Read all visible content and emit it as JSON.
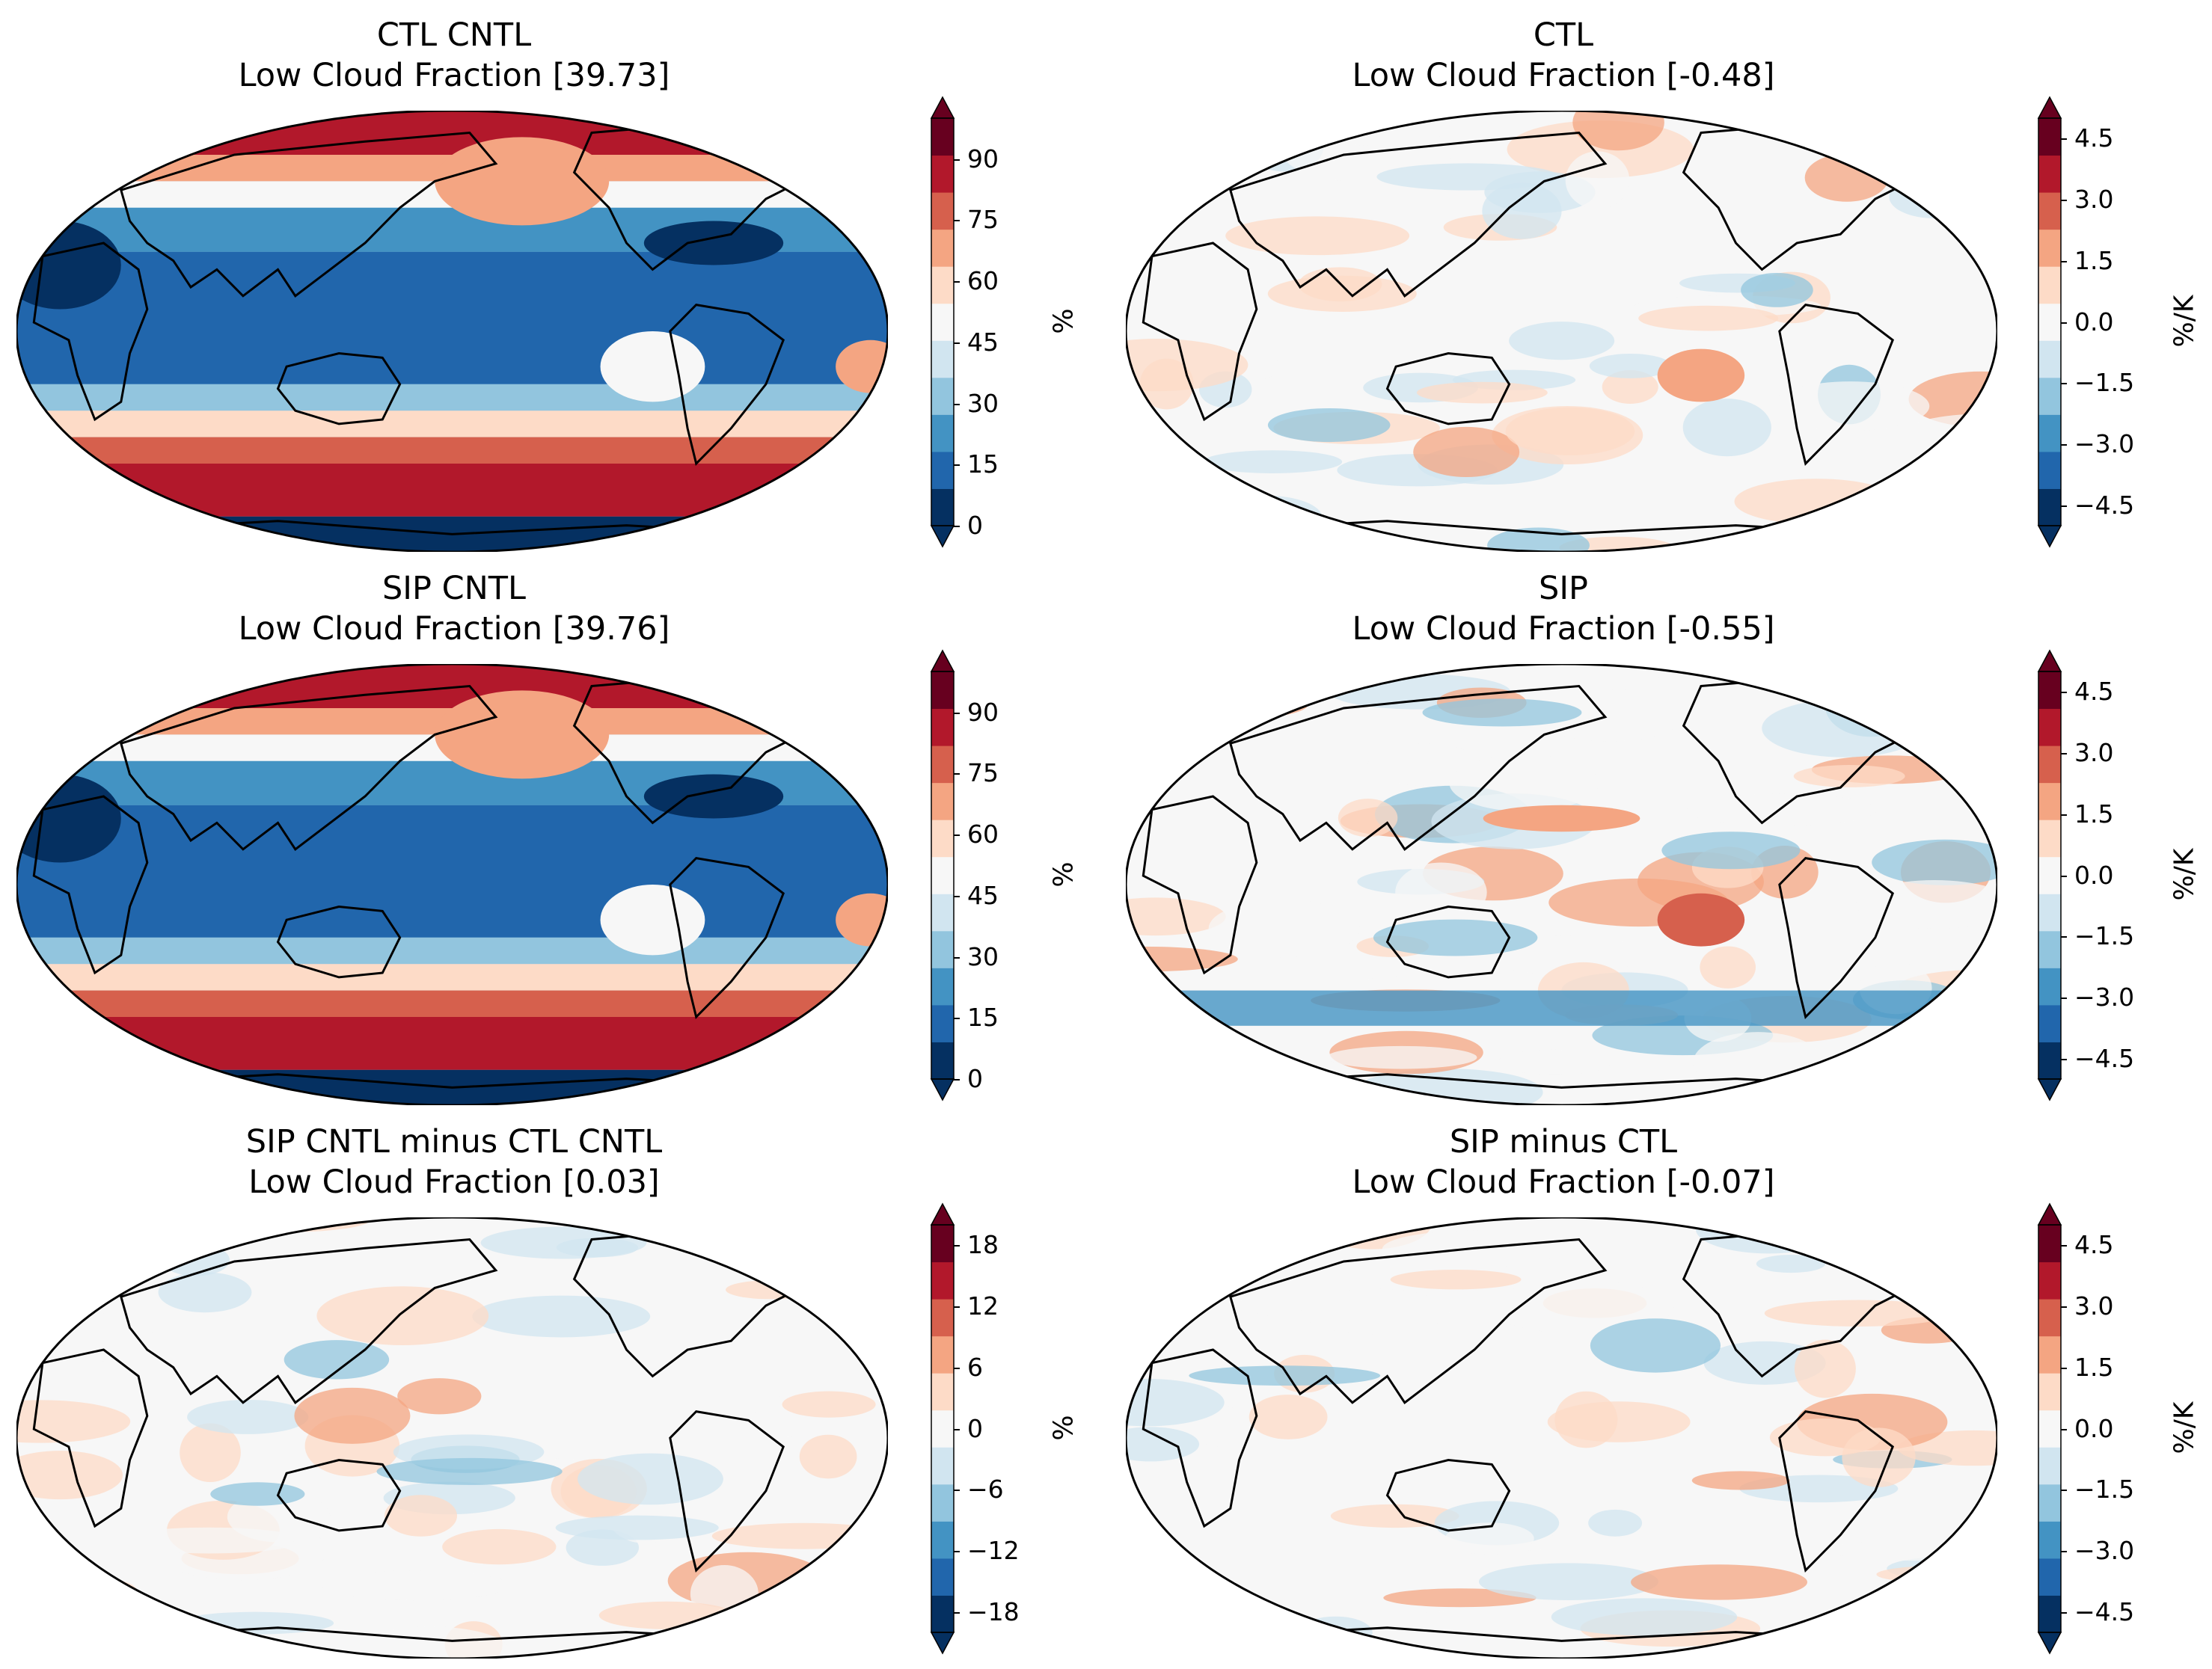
{
  "panels": [
    {
      "name": "ctl-cntl",
      "title1": "CTL CNTL",
      "title2": "Low Cloud Fraction [39.73]",
      "kind": "abs",
      "cbar": {
        "label": "%",
        "ticks": [
          "90",
          "75",
          "60",
          "45",
          "30",
          "15",
          "0"
        ],
        "range": [
          0,
          100
        ]
      }
    },
    {
      "name": "ctl",
      "title1": "CTL",
      "title2": "Low Cloud Fraction [-0.48]",
      "kind": "sens1",
      "cbar": {
        "label": "%/K",
        "ticks": [
          "4.5",
          "3.0",
          "1.5",
          "0.0",
          "−1.5",
          "−3.0",
          "−4.5"
        ],
        "range": [
          -5,
          5
        ]
      }
    },
    {
      "name": "sip-cntl",
      "title1": "SIP CNTL",
      "title2": "Low Cloud Fraction [39.76]",
      "kind": "abs",
      "cbar": {
        "label": "%",
        "ticks": [
          "90",
          "75",
          "60",
          "45",
          "30",
          "15",
          "0"
        ],
        "range": [
          0,
          100
        ]
      }
    },
    {
      "name": "sip",
      "title1": "SIP",
      "title2": "Low Cloud Fraction [-0.55]",
      "kind": "sens2",
      "cbar": {
        "label": "%/K",
        "ticks": [
          "4.5",
          "3.0",
          "1.5",
          "0.0",
          "−1.5",
          "−3.0",
          "−4.5"
        ],
        "range": [
          -5,
          5
        ]
      }
    },
    {
      "name": "sip-cntl-minus-ctl-cntl",
      "title1": "SIP CNTL minus CTL CNTL",
      "title2": "Low Cloud Fraction [0.03]",
      "kind": "diff1",
      "cbar": {
        "label": "%",
        "ticks": [
          "18",
          "12",
          "6",
          "0",
          "−6",
          "−12",
          "−18"
        ],
        "range": [
          -20,
          20
        ]
      }
    },
    {
      "name": "sip-minus-ctl",
      "title1": "SIP minus CTL",
      "title2": "Low Cloud Fraction [-0.07]",
      "kind": "diff2",
      "cbar": {
        "label": "%/K",
        "ticks": [
          "4.5",
          "3.0",
          "1.5",
          "0.0",
          "−1.5",
          "−3.0",
          "−4.5"
        ],
        "range": [
          -5,
          5
        ]
      }
    }
  ],
  "colors": {
    "rdbu": [
      "#053061",
      "#2166ac",
      "#4393c3",
      "#92c5de",
      "#d1e5f0",
      "#f7f7f7",
      "#fddbc7",
      "#f4a582",
      "#d6604d",
      "#b2182b",
      "#67001f"
    ]
  }
}
